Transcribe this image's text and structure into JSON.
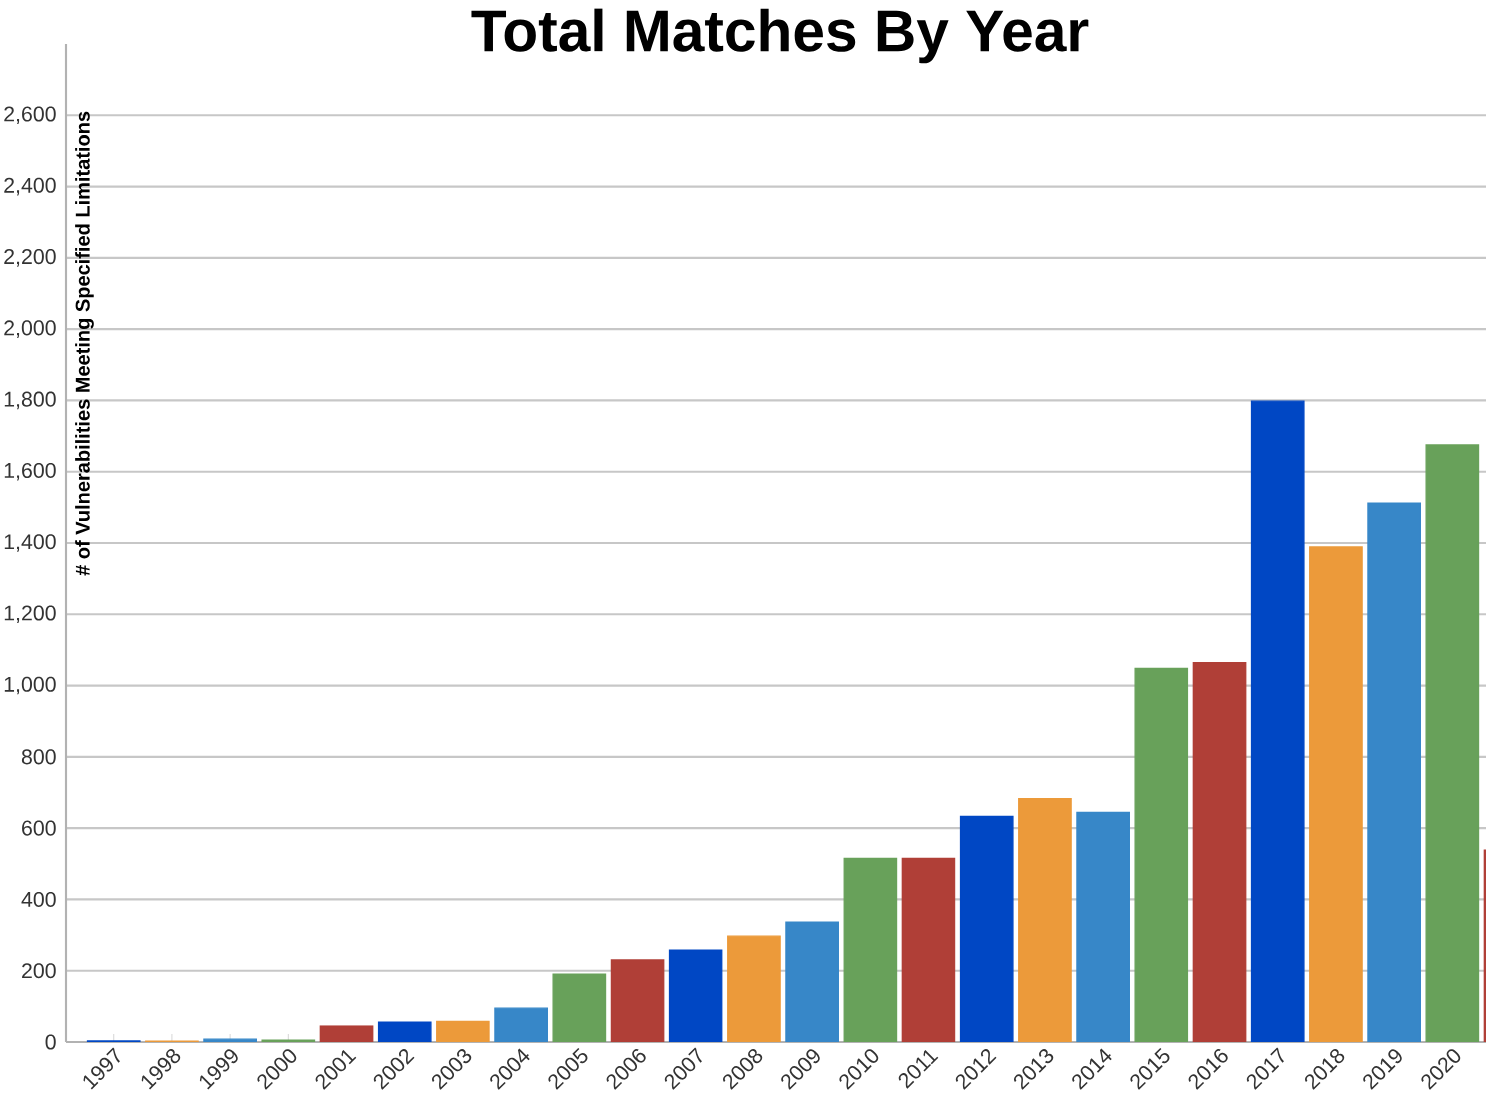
{
  "chart_data": {
    "type": "bar",
    "title": "Total Matches By Year",
    "ylabel": "# of Vulnerabilities Meeting Specified Limitations",
    "categories": [
      "1997",
      "1998",
      "1999",
      "2000",
      "2001",
      "2002",
      "2003",
      "2004",
      "2005",
      "2006",
      "2007",
      "2008",
      "2009",
      "2010",
      "2011",
      "2012",
      "2013",
      "2014",
      "2015",
      "2016",
      "2017",
      "2018",
      "2019",
      "2020",
      null
    ],
    "values": [
      3,
      2,
      8,
      5,
      45,
      56,
      58,
      95,
      190,
      230,
      258,
      297,
      336,
      515,
      515,
      633,
      683,
      644,
      1048,
      1064,
      1798,
      1389,
      1512,
      1675,
      538
    ],
    "colors": [
      "#0047c4",
      "#ec9a3a",
      "#3787c8",
      "#68a15a",
      "#b03f37",
      "#0047c4",
      "#ec9a3a",
      "#3787c8",
      "#68a15a",
      "#b03f37",
      "#0047c4",
      "#ec9a3a",
      "#3787c8",
      "#68a15a",
      "#b03f37",
      "#0047c4",
      "#ec9a3a",
      "#3787c8",
      "#68a15a",
      "#b03f37",
      "#0047c4",
      "#ec9a3a",
      "#3787c8",
      "#68a15a",
      "#b03f37"
    ],
    "ylim": [
      0,
      2800
    ],
    "yticks": [
      {
        "value": 0,
        "label": "0"
      },
      {
        "value": 200,
        "label": "200"
      },
      {
        "value": 400,
        "label": "400"
      },
      {
        "value": 600,
        "label": "600"
      },
      {
        "value": 800,
        "label": "800"
      },
      {
        "value": 1000,
        "label": "1,000"
      },
      {
        "value": 1200,
        "label": "1,200"
      },
      {
        "value": 1400,
        "label": "1,400"
      },
      {
        "value": 1600,
        "label": "1,600"
      },
      {
        "value": 1800,
        "label": "1,800"
      },
      {
        "value": 2000,
        "label": "2,000"
      },
      {
        "value": 2200,
        "label": "2,200"
      },
      {
        "value": 2400,
        "label": "2,400"
      },
      {
        "value": 2600,
        "label": "2,600"
      }
    ],
    "grid": "y"
  }
}
